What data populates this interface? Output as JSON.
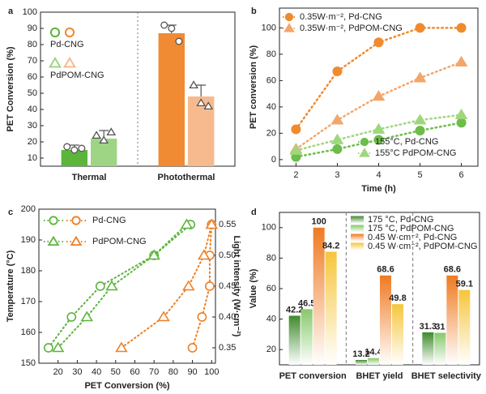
{
  "chart_data": [
    {
      "type": "bar",
      "label": "a",
      "ylabel": "PET Conversion (%)",
      "ylim": [
        5,
        100
      ],
      "yticks": [
        10,
        20,
        30,
        40,
        50,
        60,
        70,
        80,
        90,
        100
      ],
      "categories": [
        "Thermal",
        "Photothermal"
      ],
      "category_colors": [
        "#5cb53b",
        "#ef7f24"
      ],
      "series": [
        {
          "name": "Pd-CNG",
          "marker": "circle",
          "colors": [
            "#5cb53b",
            "#f08a33"
          ],
          "values": [
            15,
            87
          ],
          "errors": [
            3,
            5
          ],
          "points": [
            [
              17,
              15,
              16
            ],
            [
              92,
              90,
              82
            ]
          ]
        },
        {
          "name": "PdPOM-CNG",
          "marker": "triangle",
          "colors": [
            "#9ed584",
            "#f6ba8e"
          ],
          "values": [
            22,
            48
          ],
          "errors": [
            5,
            7
          ],
          "points": [
            [
              24,
              21,
              26
            ],
            [
              55,
              44,
              42
            ]
          ]
        }
      ]
    },
    {
      "type": "line",
      "label": "b",
      "ylabel": "PET conversion (%)",
      "xlabel": "Time (h)",
      "xlim": [
        1.6,
        6.4
      ],
      "xticks": [
        2,
        3,
        4,
        5,
        6
      ],
      "ylim": [
        -5,
        115
      ],
      "yticks": [
        0,
        20,
        40,
        60,
        80,
        100
      ],
      "x": [
        2,
        3,
        4,
        5,
        6
      ],
      "series": [
        {
          "name": "0.35W·m⁻², Pd-CNG",
          "marker": "circle",
          "color": "#f08a2e",
          "values": [
            23,
            67,
            89,
            100,
            100
          ]
        },
        {
          "name": "0.35W·m⁻², PdPOM-CNG",
          "marker": "triangle",
          "color": "#f4a66a",
          "values": [
            8,
            30,
            48,
            62,
            74
          ]
        },
        {
          "name": "155°C, Pd-CNG",
          "marker": "circle",
          "color": "#6cbd4a",
          "values": [
            2,
            8,
            15,
            22,
            28
          ]
        },
        {
          "name": "155°C PdPOM-CNG",
          "marker": "triangle",
          "color": "#9fd77f",
          "values": [
            7,
            15,
            23,
            30,
            34
          ]
        }
      ]
    },
    {
      "type": "scatter",
      "label": "c",
      "xlabel": "PET Conversion (%)",
      "ylabel": "Temperature (°C)",
      "ylabel_color": "#5cb53b",
      "y2label": "Light intensity (W·cm⁻²)",
      "y2label_color": "#ef7f24",
      "xlim": [
        10,
        102
      ],
      "xticks": [
        20,
        30,
        40,
        50,
        60,
        70,
        80,
        90,
        100
      ],
      "ylim": [
        150,
        200
      ],
      "yticks": [
        150,
        160,
        170,
        180,
        190,
        200
      ],
      "y2lim": [
        0.325,
        0.575
      ],
      "y2ticks": [
        0.35,
        {
          "value": 0.4,
          "label": "0.40"
        },
        0.45,
        {
          "value": 0.5,
          "label": "0.50"
        },
        0.55
      ],
      "series": [
        {
          "name": "Pd-CNG",
          "marker": "circle",
          "color": "#5cb53b",
          "x": [
            15,
            27,
            42,
            70,
            89
          ],
          "values": [
            155,
            165,
            175,
            185,
            195
          ]
        },
        {
          "name": "PdPOM-CNG",
          "marker": "triangle",
          "color": "#5cb53b",
          "x": [
            20,
            35,
            48,
            70,
            87
          ],
          "values": [
            155,
            165,
            175,
            185,
            195
          ]
        },
        {
          "marker": "circle",
          "color": "#ef7f24",
          "axis": "y2",
          "x": [
            90,
            95,
            99,
            99,
            100
          ],
          "values": [
            0.35,
            0.4,
            0.45,
            0.5,
            0.55
          ]
        },
        {
          "marker": "triangle",
          "color": "#ef7f24",
          "axis": "y2",
          "x": [
            53,
            75,
            88,
            96,
            100
          ],
          "values": [
            0.35,
            0.4,
            0.45,
            0.5,
            0.55
          ]
        }
      ]
    },
    {
      "type": "bar",
      "label": "d",
      "ylabel": "Value (%)",
      "ylim": [
        10,
        110
      ],
      "yticks": [
        20,
        40,
        60,
        80,
        100
      ],
      "categories": [
        "PET conversion",
        "BHET yield",
        "BHET selectivity"
      ],
      "series": [
        {
          "name": "175 °C, Pd-CNG",
          "color": "#3f8a2c",
          "values": [
            42.2,
            13.2,
            31.3
          ]
        },
        {
          "name": "175 °C, PdPOM-CNG",
          "color": "#86c96a",
          "values": [
            46.5,
            14.4,
            31
          ]
        },
        {
          "name": "0.45 W·cm⁻², Pd-CNG",
          "color": "#ef7a22",
          "values": [
            100,
            68.6,
            68.6
          ]
        },
        {
          "name": "0.45 W·cm⁻², PdPOM-CNG",
          "color": "#f5c63c",
          "values": [
            84.2,
            49.8,
            59.1
          ]
        }
      ]
    }
  ]
}
